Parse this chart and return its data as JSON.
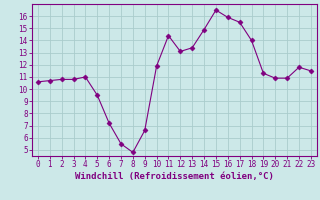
{
  "x": [
    0,
    1,
    2,
    3,
    4,
    5,
    6,
    7,
    8,
    9,
    10,
    11,
    12,
    13,
    14,
    15,
    16,
    17,
    18,
    19,
    20,
    21,
    22,
    23
  ],
  "y": [
    10.6,
    10.7,
    10.8,
    10.8,
    11.0,
    9.5,
    7.2,
    5.5,
    4.8,
    6.6,
    11.9,
    14.4,
    13.1,
    13.4,
    14.9,
    16.5,
    15.9,
    15.5,
    14.0,
    11.3,
    10.9,
    10.9,
    11.8,
    11.5
  ],
  "line_color": "#800080",
  "marker": "D",
  "marker_size": 2.5,
  "bg_color": "#cce8e8",
  "grid_color": "#aacccc",
  "xlabel": "Windchill (Refroidissement éolien,°C)",
  "ylabel_ticks": [
    5,
    6,
    7,
    8,
    9,
    10,
    11,
    12,
    13,
    14,
    15,
    16
  ],
  "xtick_labels": [
    "0",
    "1",
    "2",
    "3",
    "4",
    "5",
    "6",
    "7",
    "8",
    "9",
    "10",
    "11",
    "12",
    "13",
    "14",
    "15",
    "16",
    "17",
    "18",
    "19",
    "20",
    "21",
    "22",
    "23"
  ],
  "ylim": [
    4.5,
    17.0
  ],
  "xlim": [
    -0.5,
    23.5
  ],
  "tick_fontsize": 5.5,
  "xlabel_fontsize": 6.5
}
